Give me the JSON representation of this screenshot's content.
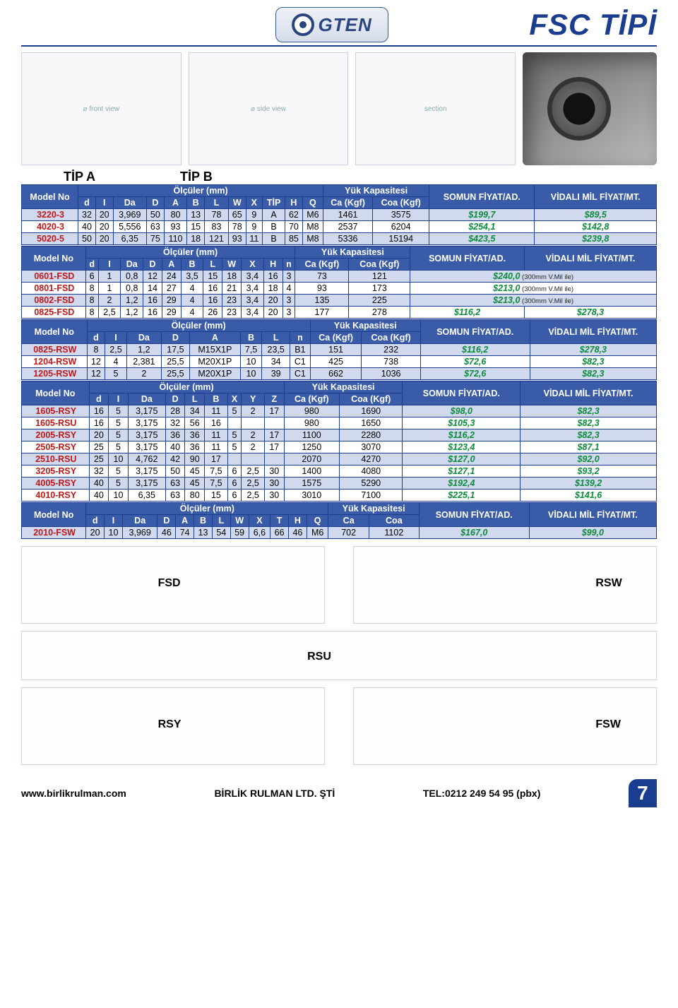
{
  "brand": {
    "name": "GTEN"
  },
  "page_title": "FSC TİPİ",
  "tip_labels": {
    "a": "TİP A",
    "b": "TİP B"
  },
  "th": {
    "model": "Model\nNo",
    "olculer": "Ölçüler (mm)",
    "yuk_kap": "Yük Kapasitesi",
    "somun": "SOMUN\nFİYAT/AD.",
    "vidali": "VİDALI MİL\nFİYAT/MT.",
    "d": "d",
    "I": "I",
    "Da": "Da",
    "D": "D",
    "A": "A",
    "B": "B",
    "L": "L",
    "W": "W",
    "X": "X",
    "TIP": "TİP",
    "H": "H",
    "Q": "Q",
    "n": "n",
    "Y": "Y",
    "Z": "Z",
    "T": "T",
    "Ca": "Ca\n(Kgf)",
    "Coa": "Coa\n(Kgf)",
    "Ca_s": "Ca",
    "Coa_s": "Coa"
  },
  "table1": {
    "rows": [
      {
        "model": "3220-3",
        "d": "32",
        "I": "20",
        "Da": "3,969",
        "D": "50",
        "A": "80",
        "B": "13",
        "L": "78",
        "W": "65",
        "X": "9",
        "TIP": "A",
        "H": "62",
        "Q": "M6",
        "Ca": "1461",
        "Coa": "3575",
        "p1": "$199,7",
        "p2": "$89,5"
      },
      {
        "model": "4020-3",
        "d": "40",
        "I": "20",
        "Da": "5,556",
        "D": "63",
        "A": "93",
        "B": "15",
        "L": "83",
        "W": "78",
        "X": "9",
        "TIP": "B",
        "H": "70",
        "Q": "M8",
        "Ca": "2537",
        "Coa": "6204",
        "p1": "$254,1",
        "p2": "$142,8"
      },
      {
        "model": "5020-5",
        "d": "50",
        "I": "20",
        "Da": "6,35",
        "D": "75",
        "A": "110",
        "B": "18",
        "L": "121",
        "W": "93",
        "X": "11",
        "TIP": "B",
        "H": "85",
        "Q": "M8",
        "Ca": "5336",
        "Coa": "15194",
        "p1": "$423,5",
        "p2": "$239,8"
      }
    ]
  },
  "table2": {
    "rows": [
      {
        "model": "0601-FSD",
        "d": "6",
        "I": "1",
        "Da": "0,8",
        "D": "12",
        "A": "24",
        "B": "3,5",
        "L": "15",
        "W": "18",
        "X": "3,4",
        "H": "16",
        "n": "3",
        "Ca": "73",
        "Coa": "121",
        "p1": "$240,0",
        "note": "(300mm V.Mil ile)"
      },
      {
        "model": "0801-FSD",
        "d": "8",
        "I": "1",
        "Da": "0,8",
        "D": "14",
        "A": "27",
        "B": "4",
        "L": "16",
        "W": "21",
        "X": "3,4",
        "H": "18",
        "n": "4",
        "Ca": "93",
        "Coa": "173",
        "p1": "$213,0",
        "note": "(300mm V.Mil ile)"
      },
      {
        "model": "0802-FSD",
        "d": "8",
        "I": "2",
        "Da": "1,2",
        "D": "16",
        "A": "29",
        "B": "4",
        "L": "16",
        "W": "23",
        "X": "3,4",
        "H": "20",
        "n": "3",
        "Ca": "135",
        "Coa": "225",
        "p1": "$213,0",
        "note": "(300mm V.Mil ile)"
      },
      {
        "model": "0825-FSD",
        "d": "8",
        "I": "2,5",
        "Da": "1,2",
        "D": "16",
        "A": "29",
        "B": "4",
        "L": "26",
        "W": "23",
        "X": "3,4",
        "H": "20",
        "n": "3",
        "Ca": "177",
        "Coa": "278",
        "p1": "$116,2",
        "p2": "$278,3"
      }
    ]
  },
  "table3": {
    "rows": [
      {
        "model": "0825-RSW",
        "d": "8",
        "I": "2,5",
        "Da": "1,2",
        "D": "17,5",
        "A": "M15X1P",
        "B": "7,5",
        "L": "23,5",
        "n": "B1",
        "Ca": "151",
        "Coa": "232",
        "p1": "$116,2",
        "p2": "$278,3"
      },
      {
        "model": "1204-RSW",
        "d": "12",
        "I": "4",
        "Da": "2,381",
        "D": "25,5",
        "A": "M20X1P",
        "B": "10",
        "L": "34",
        "n": "C1",
        "Ca": "425",
        "Coa": "738",
        "p1": "$72,6",
        "p2": "$82,3"
      },
      {
        "model": "1205-RSW",
        "d": "12",
        "I": "5",
        "Da": "2",
        "D": "25,5",
        "A": "M20X1P",
        "B": "10",
        "L": "39",
        "n": "C1",
        "Ca": "662",
        "Coa": "1036",
        "p1": "$72,6",
        "p2": "$82,3"
      }
    ]
  },
  "table4": {
    "rows": [
      {
        "model": "1605-RSY",
        "d": "16",
        "I": "5",
        "Da": "3,175",
        "D": "28",
        "L": "34",
        "B": "11",
        "X": "5",
        "Y": "2",
        "Z": "17",
        "Ca": "980",
        "Coa": "1690",
        "p1": "$98,0",
        "p2": "$82,3"
      },
      {
        "model": "1605-RSU",
        "d": "16",
        "I": "5",
        "Da": "3,175",
        "D": "32",
        "L": "56",
        "B": "16",
        "X": "",
        "Y": "",
        "Z": "",
        "Ca": "980",
        "Coa": "1650",
        "p1": "$105,3",
        "p2": "$82,3"
      },
      {
        "model": "2005-RSY",
        "d": "20",
        "I": "5",
        "Da": "3,175",
        "D": "36",
        "L": "36",
        "B": "11",
        "X": "5",
        "Y": "2",
        "Z": "17",
        "Ca": "1100",
        "Coa": "2280",
        "p1": "$116,2",
        "p2": "$82,3"
      },
      {
        "model": "2505-RSY",
        "d": "25",
        "I": "5",
        "Da": "3,175",
        "D": "40",
        "L": "36",
        "B": "11",
        "X": "5",
        "Y": "2",
        "Z": "17",
        "Ca": "1250",
        "Coa": "3070",
        "p1": "$123,4",
        "p2": "$87,1"
      },
      {
        "model": "2510-RSU",
        "d": "25",
        "I": "10",
        "Da": "4,762",
        "D": "42",
        "L": "90",
        "B": "17",
        "X": "",
        "Y": "",
        "Z": "",
        "Ca": "2070",
        "Coa": "4270",
        "p1": "$127,0",
        "p2": "$92,0"
      },
      {
        "model": "3205-RSY",
        "d": "32",
        "I": "5",
        "Da": "3,175",
        "D": "50",
        "L": "45",
        "B": "7,5",
        "X": "6",
        "Y": "2,5",
        "Z": "30",
        "Ca": "1400",
        "Coa": "4080",
        "p1": "$127,1",
        "p2": "$93,2"
      },
      {
        "model": "4005-RSY",
        "d": "40",
        "I": "5",
        "Da": "3,175",
        "D": "63",
        "L": "45",
        "B": "7,5",
        "X": "6",
        "Y": "2,5",
        "Z": "30",
        "Ca": "1575",
        "Coa": "5290",
        "p1": "$192,4",
        "p2": "$139,2"
      },
      {
        "model": "4010-RSY",
        "d": "40",
        "I": "10",
        "Da": "6,35",
        "D": "63",
        "L": "80",
        "B": "15",
        "X": "6",
        "Y": "2,5",
        "Z": "30",
        "Ca": "3010",
        "Coa": "7100",
        "p1": "$225,1",
        "p2": "$141,6"
      }
    ]
  },
  "table5": {
    "rows": [
      {
        "model": "2010-FSW",
        "d": "20",
        "I": "10",
        "Da": "3,969",
        "D": "46",
        "A": "74",
        "B": "13",
        "L": "54",
        "W": "59",
        "X": "6,6",
        "T": "66",
        "H": "46",
        "Q": "M6",
        "Ca": "702",
        "Coa": "1102",
        "p1": "$167,0",
        "p2": "$99,0"
      }
    ]
  },
  "bottom_labels": {
    "fsd": "FSD",
    "rsw": "RSW",
    "rsu": "RSU",
    "rsy": "RSY",
    "fsw": "FSW"
  },
  "footer": {
    "url": "www.birlikrulman.com",
    "company": "BİRLİK RULMAN LTD. ŞTİ",
    "tel": "TEL:0212 249 54 95 (pbx)",
    "page": "7"
  },
  "colors": {
    "header_bg": "#3a5ca8",
    "band": "#d0d9ee",
    "model": "#c01818",
    "price": "#0b8a3a",
    "accent": "#1a3d8f"
  }
}
